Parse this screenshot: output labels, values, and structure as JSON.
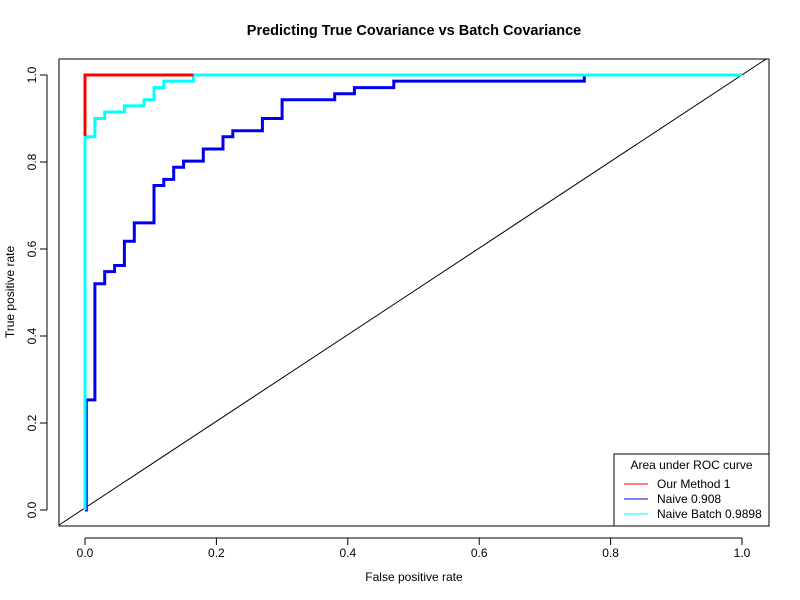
{
  "chart_data": {
    "type": "line",
    "title": "Predicting True Covariance vs Batch Covariance",
    "xlabel": "False positive rate",
    "ylabel": "True positive rate",
    "xlim": [
      0,
      1
    ],
    "ylim": [
      0,
      1
    ],
    "xticks": [
      "0.0",
      "0.2",
      "0.4",
      "0.6",
      "0.8",
      "1.0"
    ],
    "yticks": [
      "0.0",
      "0.2",
      "0.4",
      "0.6",
      "0.8",
      "1.0"
    ],
    "grid": false,
    "legend": {
      "title": "Area under ROC curve",
      "placement": "bottom-right"
    },
    "series": [
      {
        "name": "Naive 0.908",
        "color": "#0000ee",
        "x": [
          0,
          0.002,
          0.002,
          0.015,
          0.015,
          0.03,
          0.03,
          0.045,
          0.045,
          0.06,
          0.06,
          0.075,
          0.075,
          0.105,
          0.105,
          0.12,
          0.12,
          0.135,
          0.135,
          0.15,
          0.15,
          0.18,
          0.18,
          0.21,
          0.21,
          0.225,
          0.225,
          0.27,
          0.27,
          0.3,
          0.3,
          0.38,
          0.38,
          0.41,
          0.41,
          0.47,
          0.47,
          0.76,
          0.76,
          1.0
        ],
        "y": [
          0,
          0,
          0.253,
          0.253,
          0.52,
          0.52,
          0.548,
          0.548,
          0.562,
          0.562,
          0.618,
          0.618,
          0.66,
          0.66,
          0.746,
          0.746,
          0.76,
          0.76,
          0.788,
          0.788,
          0.802,
          0.802,
          0.83,
          0.83,
          0.858,
          0.858,
          0.872,
          0.872,
          0.9,
          0.9,
          0.943,
          0.943,
          0.957,
          0.957,
          0.971,
          0.971,
          0.986,
          0.986,
          1.0,
          1.0
        ]
      },
      {
        "name": "Naive Batch 0.9898",
        "color": "#00ffff",
        "x": [
          0,
          0,
          0.015,
          0.015,
          0.03,
          0.03,
          0.06,
          0.06,
          0.09,
          0.09,
          0.105,
          0.105,
          0.12,
          0.12,
          0.165,
          0.165,
          1.0
        ],
        "y": [
          0,
          0.858,
          0.858,
          0.9,
          0.9,
          0.915,
          0.915,
          0.929,
          0.929,
          0.943,
          0.943,
          0.971,
          0.971,
          0.986,
          0.986,
          1.0,
          1.0
        ]
      },
      {
        "name": "Our Method 1",
        "color": "#ff0000",
        "x": [
          0,
          0,
          0.165
        ],
        "y": [
          0.86,
          1.0,
          1.0
        ]
      }
    ],
    "reference_line": {
      "x": [
        -0.04,
        1.04
      ],
      "y": [
        -0.035,
        1.04
      ],
      "color": "#000000"
    },
    "legend_order": [
      "Our Method 1",
      "Naive 0.908",
      "Naive Batch 0.9898"
    ]
  }
}
